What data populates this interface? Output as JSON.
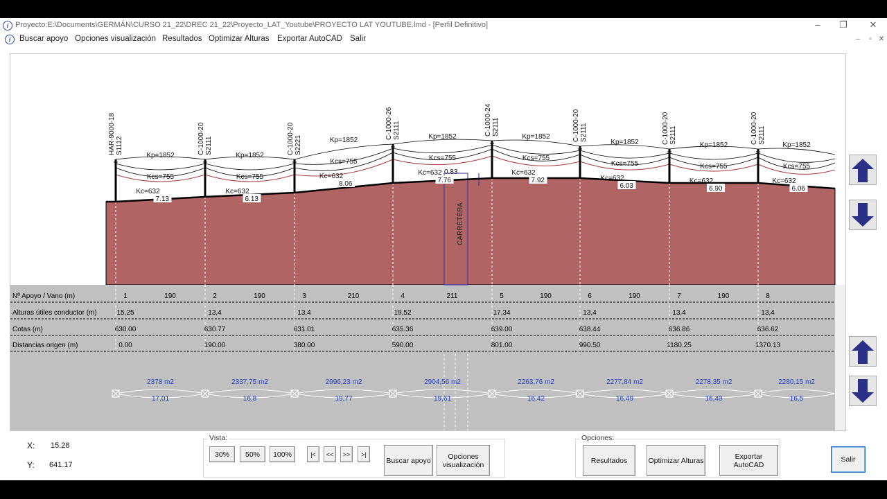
{
  "window": {
    "title": "Proyecto:E:\\Documents\\GERMÁN\\CURSO 21_22\\DREC 21_22\\Proyecto_LAT_Youtube\\PROYECTO LAT YOUTUBE.lmd - [Perfil Definitivo]",
    "minimize_glyph": "–",
    "restore_glyph": "❐",
    "close_glyph": "✕"
  },
  "menu": {
    "items": [
      "Buscar apoyo",
      "Opciones visualización",
      "Resultados",
      "Optimizar Alturas",
      "Exportar AutoCAD",
      "Salir"
    ],
    "mdi": [
      "–",
      "▫",
      "✕"
    ]
  },
  "profile": {
    "towers": [
      {
        "number": "1",
        "type": "HAR-9000-18",
        "code": "S1112",
        "vano": "190",
        "altura": "15,25",
        "cota": "630.00",
        "distancia": "0.00",
        "kp": "Kp=1852",
        "kcs": "Kcs=755",
        "kc": "Kc=632",
        "clearance": "7.13",
        "area": "2378 m2",
        "ratio": "17,01"
      },
      {
        "number": "2",
        "type": "C-1000-20",
        "code": "S2111",
        "vano": "190",
        "altura": "13,4",
        "cota": "630.77",
        "distancia": "190.00",
        "kp": "Kp=1852",
        "kcs": "Kcs=755",
        "kc": "Kc=632",
        "clearance": "6.13",
        "area": "2337,75 m2",
        "ratio": "16,8"
      },
      {
        "number": "3",
        "type": "C-1000-20",
        "code": "S2221",
        "vano": "210",
        "altura": "13,4",
        "cota": "631.01",
        "distancia": "380.00",
        "kp": "Kp=1852",
        "kcs": "Kcs=755",
        "kc": "Kc=632",
        "clearance": "8.06",
        "area": "2996,23 m2",
        "ratio": "19,77"
      },
      {
        "number": "4",
        "type": "C-1000-26",
        "code": "S2111",
        "vano": "211",
        "altura": "19,52",
        "cota": "635.36",
        "distancia": "590.00",
        "kp": "Kp=1852",
        "kcs": "Kcs=755",
        "kc": "Kc=632",
        "clearance": "7.76",
        "area": "2904,56 m2",
        "ratio": "19,61"
      },
      {
        "number": "5",
        "type": "C-1000-24",
        "code": "S2111",
        "vano": "190",
        "altura": "17,34",
        "cota": "639.00",
        "distancia": "801.00",
        "kp": "Kp=1852",
        "kcs": "Kcs=755",
        "kc": "Kc=632",
        "clearance": "7.92",
        "area": "2263,76 m2",
        "ratio": "16,42"
      },
      {
        "number": "6",
        "type": "C-1000-20",
        "code": "S2111",
        "vano": "190",
        "altura": "13,4",
        "cota": "638.44",
        "distancia": "990.50",
        "kp": "Kp=1852",
        "kcs": "Kcs=755",
        "kc": "Kc=632",
        "clearance": "6.03",
        "area": "2277,84 m2",
        "ratio": "16,49"
      },
      {
        "number": "7",
        "type": "C-1000-20",
        "code": "S2111",
        "vano": "190",
        "altura": "13,4",
        "cota": "636.86",
        "distancia": "1180.25",
        "kp": "Kp=1852",
        "kcs": "Kcs=755",
        "kc": "Kc=632",
        "clearance": "6.90",
        "area": "2278,35 m2",
        "ratio": "16,49"
      },
      {
        "number": "8",
        "type": "C-1000-20",
        "code": "S2111",
        "vano": "",
        "altura": "13,4",
        "cota": "636.62",
        "distancia": "1370.13",
        "kp": "Kp=1852",
        "kcs": "Kcs=755",
        "kc": "Kc=632",
        "clearance": "6.06",
        "area": "2280,15 m2",
        "ratio": "16,5"
      }
    ],
    "road_label": "CARRETERA",
    "road_clearance": "0.83",
    "colors": {
      "terrain": "#b06464",
      "catenary_red": "#a83a3a",
      "data_area": "#c0c0c0",
      "blue_text": "#1f3fc8",
      "arrow": "#2b3187"
    }
  },
  "table": {
    "row_labels": [
      "Nº Apoyo / Vano (m)",
      "Alturas útiles conductor (m)",
      "Cotas (m)",
      "Distancias origen (m)"
    ]
  },
  "coords": {
    "x_label": "X:",
    "x_value": "15.28",
    "y_label": "Y:",
    "y_value": "641.17"
  },
  "vista": {
    "label": "Vista:",
    "zoom": [
      "30%",
      "50%",
      "100%"
    ],
    "nav": [
      "|<",
      "<<",
      ">>",
      ">|"
    ]
  },
  "buttons": {
    "buscar": "Buscar apoyo",
    "opciones": "Opciones\nvisualización",
    "resultados": "Resultados",
    "optimizar": "Optimizar Alturas",
    "exportar": "Exportar AutoCAD",
    "salir": "Salir"
  },
  "opciones": {
    "label": "Opciones:"
  }
}
